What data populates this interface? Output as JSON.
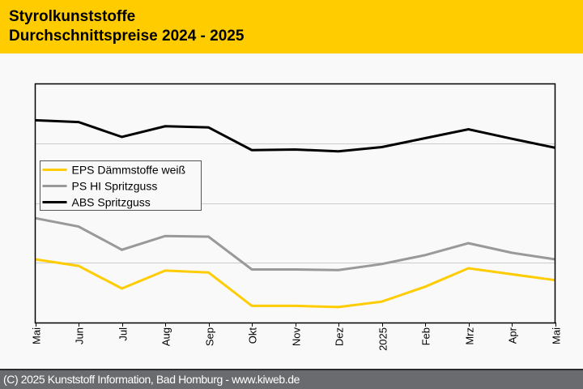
{
  "header": {
    "title_line1": "Styrolkunststoffe",
    "title_line2": "Durchschnittspreise 2024 - 2025"
  },
  "footer": {
    "copyright": "(C) 2025 Kunststoff Information, Bad Homburg - www.kiweb.de"
  },
  "colors": {
    "header_bg": "#ffcc00",
    "footer_bg": "#6a6b6e",
    "plot_bg": "#f9f9f9",
    "grid": "#cccccc"
  },
  "chart_data": {
    "type": "line",
    "title": "Styrolkunststoffe Durchschnittspreise 2024 - 2025",
    "xlabel": "",
    "ylabel": "",
    "y_axis_labels_shown": false,
    "y_units": "relative (unlabeled axis, gridlines at 1, 2, 3)",
    "ylim": [
      0,
      4
    ],
    "y_gridlines": [
      1,
      2,
      3
    ],
    "grid": true,
    "legend_position": "middle-left",
    "x": [
      "Mai",
      "Jun",
      "Jul",
      "Aug",
      "Sep",
      "Okt",
      "Nov",
      "Dez",
      "2025",
      "Feb",
      "Mrz",
      "Apr",
      "Mai"
    ],
    "series": [
      {
        "name": "EPS Dämmstoffe weiß",
        "color": "#ffcc00",
        "values": [
          1.06,
          0.95,
          0.57,
          0.87,
          0.84,
          0.28,
          0.28,
          0.26,
          0.35,
          0.6,
          0.91,
          0.81,
          0.71
        ]
      },
      {
        "name": "PS HI Spritzguss",
        "color": "#999999",
        "values": [
          1.75,
          1.61,
          1.22,
          1.45,
          1.44,
          0.89,
          0.89,
          0.88,
          0.98,
          1.13,
          1.33,
          1.17,
          1.06
        ]
      },
      {
        "name": "ABS Spritzguss",
        "color": "#000000",
        "values": [
          3.39,
          3.36,
          3.11,
          3.29,
          3.27,
          2.89,
          2.9,
          2.87,
          2.94,
          3.09,
          3.24,
          3.08,
          2.93
        ]
      }
    ]
  }
}
